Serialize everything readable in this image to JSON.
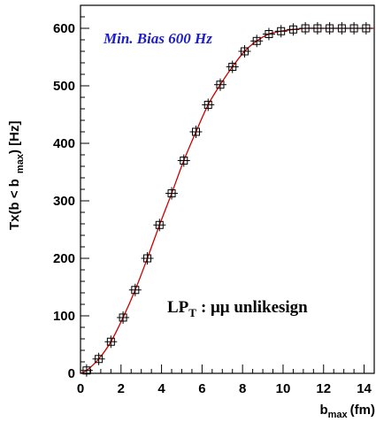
{
  "chart_data": {
    "type": "scatter",
    "title": "",
    "xlabel": {
      "main": "b",
      "sub": "max",
      "unit": "(fm)"
    },
    "ylabel": {
      "pre": "Tx(b < b",
      "sub": "max",
      "post": ") [Hz]"
    },
    "xlim": [
      0,
      14.5
    ],
    "ylim": [
      0,
      640
    ],
    "x_ticks": [
      0,
      2,
      4,
      6,
      8,
      10,
      12,
      14
    ],
    "y_ticks": [
      0,
      100,
      200,
      300,
      400,
      500,
      600
    ],
    "grid": false,
    "series": [
      {
        "marker": "open-square-with-error-cross",
        "color": "#000000",
        "x": [
          0.3,
          0.9,
          1.5,
          2.1,
          2.7,
          3.3,
          3.9,
          4.5,
          5.1,
          5.7,
          6.3,
          6.9,
          7.5,
          8.1,
          8.7,
          9.3,
          9.9,
          10.5,
          11.1,
          11.7,
          12.3,
          12.9,
          13.5,
          14.1
        ],
        "y": [
          5,
          25,
          55,
          97,
          145,
          200,
          258,
          313,
          370,
          420,
          467,
          502,
          533,
          560,
          578,
          590,
          595,
          598,
          600,
          600,
          600,
          600,
          600,
          600
        ]
      }
    ],
    "fit_curve": {
      "color": "#cc0000",
      "x": [
        0.0,
        0.3,
        0.9,
        1.5,
        2.1,
        2.7,
        3.3,
        3.9,
        4.5,
        5.1,
        5.7,
        6.3,
        6.9,
        7.5,
        8.1,
        8.7,
        9.3,
        9.9,
        10.5,
        11.1,
        11.7,
        12.3,
        12.9,
        13.5,
        14.1,
        14.5
      ],
      "y": [
        0,
        5,
        25,
        55,
        97,
        145,
        200,
        258,
        313,
        370,
        420,
        467,
        502,
        533,
        560,
        578,
        590,
        595,
        598,
        600,
        600,
        600,
        600,
        600,
        600,
        600
      ]
    },
    "annotations": {
      "top_left": "Min. Bias 600 Hz",
      "lower_right": {
        "main": "LP",
        "sub": "T",
        "rest": ": μμ unlikesign"
      }
    }
  }
}
